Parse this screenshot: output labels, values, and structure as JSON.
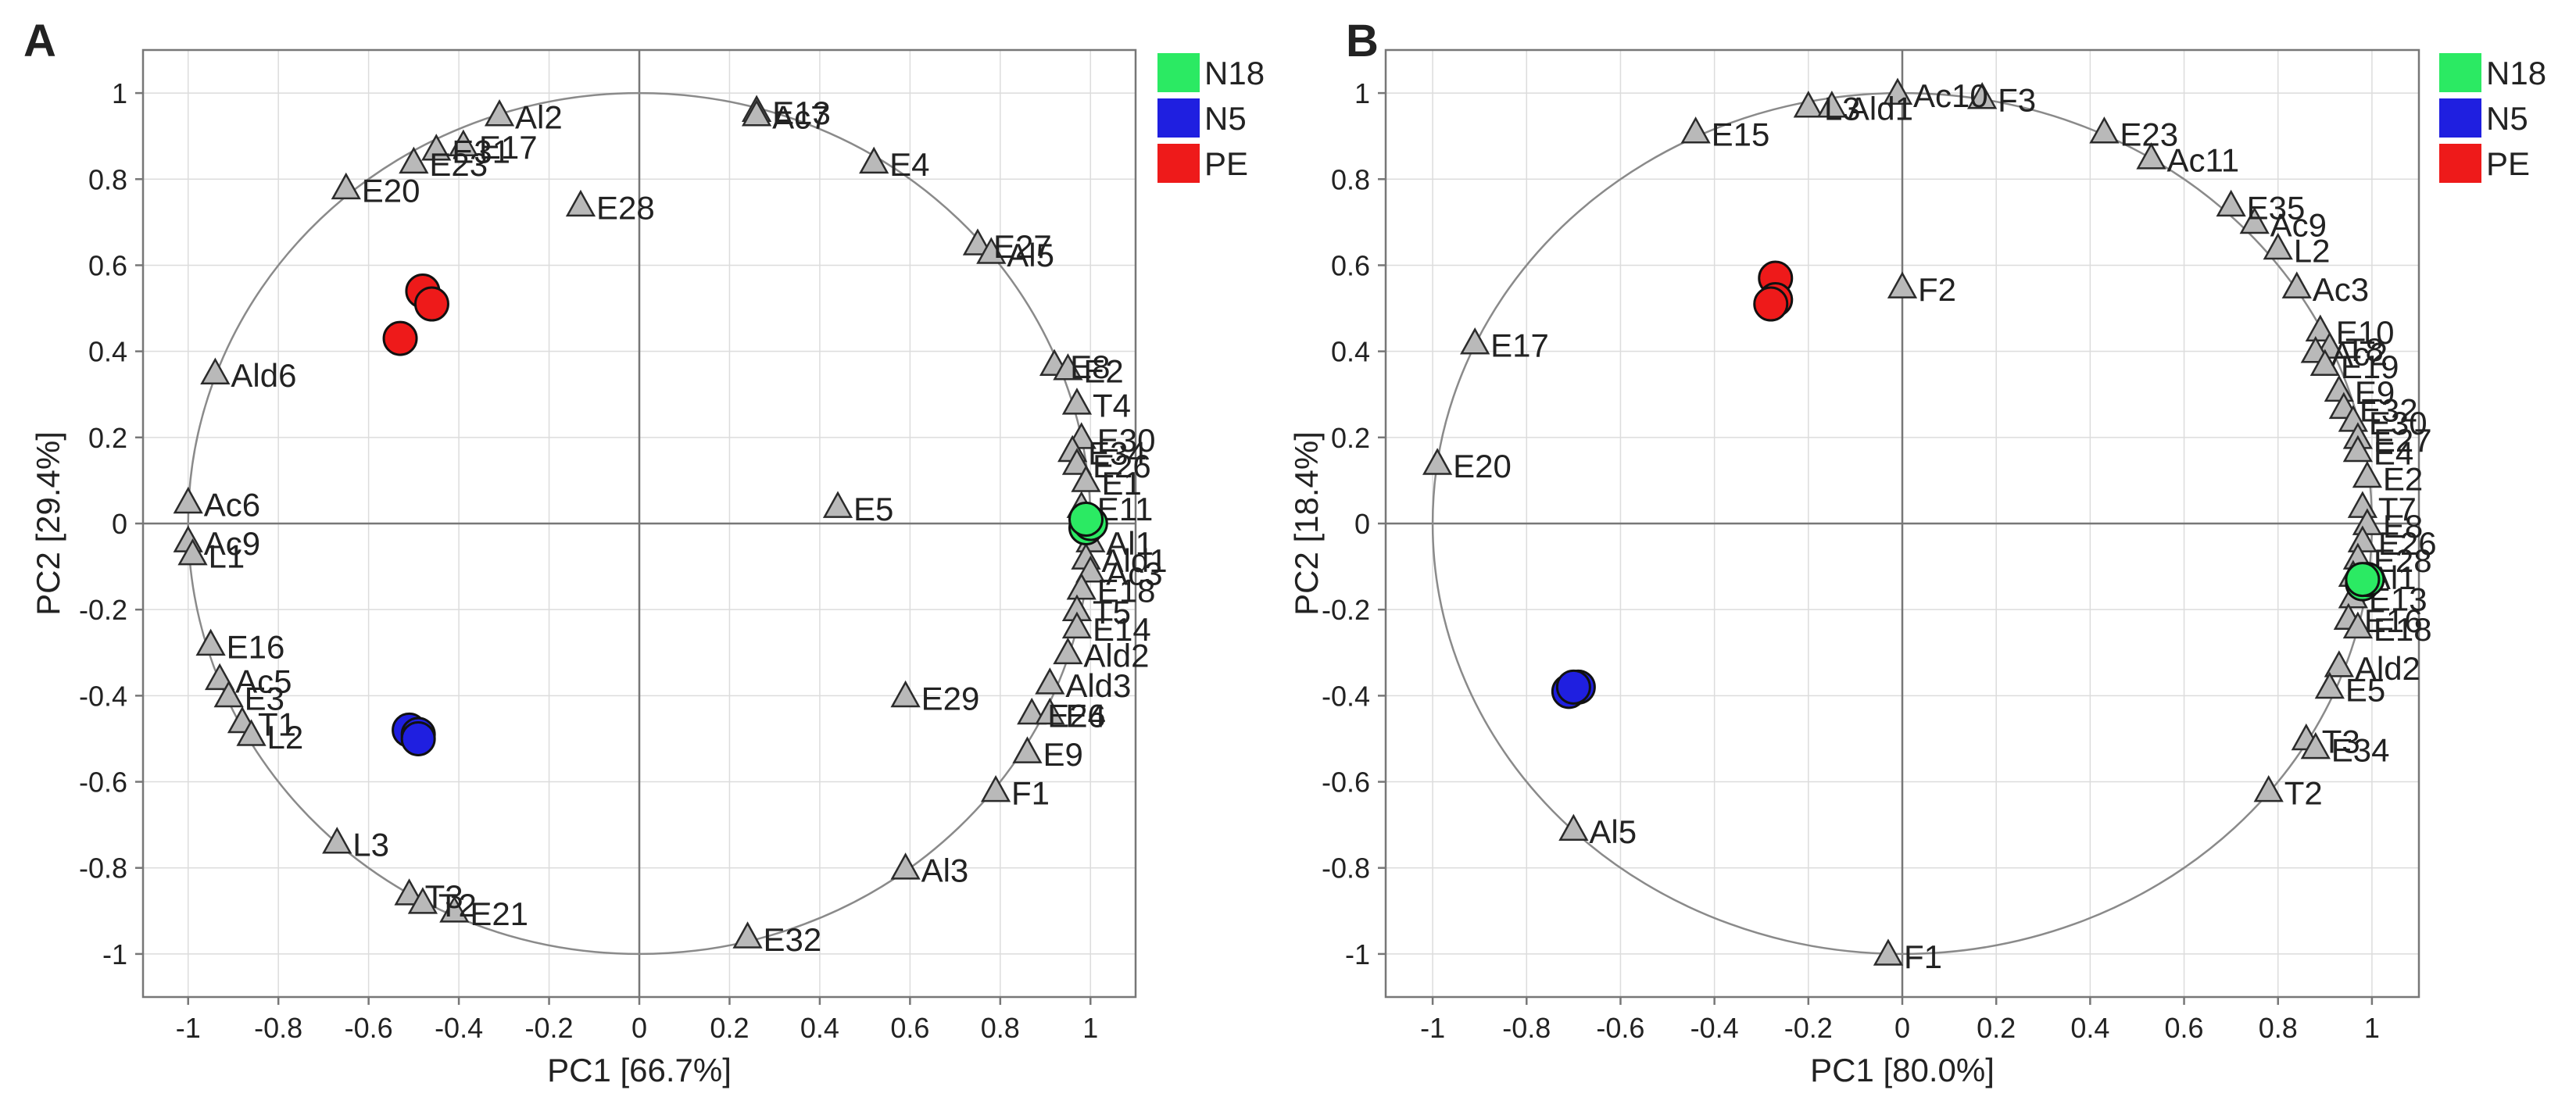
{
  "chart_data": [
    {
      "type": "scatter",
      "panel_letter": "A",
      "xlabel": "PC1 [66.7%]",
      "ylabel": "PC2 [29.4%]",
      "xlim": [
        -1.1,
        1.1
      ],
      "ylim": [
        -1.1,
        1.1
      ],
      "x_ticks": [
        -1,
        -0.8,
        -0.6,
        -0.4,
        -0.2,
        0,
        0.2,
        0.4,
        0.6,
        0.8,
        1
      ],
      "y_ticks": [
        1,
        0.8,
        0.6,
        0.4,
        0.2,
        0,
        -0.2,
        -0.4,
        -0.6,
        -0.8,
        -1
      ],
      "unit_circle": true,
      "legend": [
        {
          "name": "N18",
          "color": "#2bea63"
        },
        {
          "name": "N5",
          "color": "#1f1fe0"
        },
        {
          "name": "PE",
          "color": "#ee1a1a"
        }
      ],
      "groups": [
        {
          "name": "N18",
          "color": "#2bea63",
          "points": [
            [
              0.99,
              -0.01
            ],
            [
              1.0,
              0.0
            ],
            [
              0.99,
              0.01
            ]
          ]
        },
        {
          "name": "N5",
          "color": "#1f1fe0",
          "points": [
            [
              -0.51,
              -0.48
            ],
            [
              -0.49,
              -0.49
            ],
            [
              -0.49,
              -0.5
            ]
          ]
        },
        {
          "name": "PE",
          "color": "#ee1a1a",
          "points": [
            [
              -0.48,
              0.54
            ],
            [
              -0.46,
              0.51
            ],
            [
              -0.53,
              0.43
            ]
          ]
        }
      ],
      "variables": [
        {
          "label": "Al2",
          "x": -0.31,
          "y": 0.95
        },
        {
          "label": "E17",
          "x": -0.39,
          "y": 0.88
        },
        {
          "label": "E31",
          "x": -0.45,
          "y": 0.87
        },
        {
          "label": "E23",
          "x": -0.5,
          "y": 0.84
        },
        {
          "label": "E20",
          "x": -0.65,
          "y": 0.78
        },
        {
          "label": "E28",
          "x": -0.13,
          "y": 0.74
        },
        {
          "label": "E13",
          "x": 0.26,
          "y": 0.96
        },
        {
          "label": "Ac7",
          "x": 0.26,
          "y": 0.95
        },
        {
          "label": "E4",
          "x": 0.52,
          "y": 0.84
        },
        {
          "label": "E27",
          "x": 0.75,
          "y": 0.65
        },
        {
          "label": "Al5",
          "x": 0.78,
          "y": 0.63
        },
        {
          "label": "E8",
          "x": 0.92,
          "y": 0.37
        },
        {
          "label": "E2",
          "x": 0.95,
          "y": 0.36
        },
        {
          "label": "T4",
          "x": 0.97,
          "y": 0.28
        },
        {
          "label": "E30",
          "x": 0.98,
          "y": 0.2
        },
        {
          "label": "E34",
          "x": 0.96,
          "y": 0.17
        },
        {
          "label": "E26",
          "x": 0.97,
          "y": 0.14
        },
        {
          "label": "E1",
          "x": 0.99,
          "y": 0.1
        },
        {
          "label": "E11",
          "x": 0.98,
          "y": 0.04
        },
        {
          "label": "Al1",
          "x": 1.0,
          "y": -0.04
        },
        {
          "label": "Ald1",
          "x": 0.99,
          "y": -0.08
        },
        {
          "label": "Ac3",
          "x": 1.0,
          "y": -0.11
        },
        {
          "label": "E18",
          "x": 0.98,
          "y": -0.15
        },
        {
          "label": "T5",
          "x": 0.97,
          "y": -0.2
        },
        {
          "label": "E14",
          "x": 0.97,
          "y": -0.24
        },
        {
          "label": "Ald2",
          "x": 0.95,
          "y": -0.3
        },
        {
          "label": "Ald3",
          "x": 0.91,
          "y": -0.37
        },
        {
          "label": "E24",
          "x": 0.87,
          "y": -0.44
        },
        {
          "label": "E6",
          "x": 0.91,
          "y": -0.44
        },
        {
          "label": "E9",
          "x": 0.86,
          "y": -0.53
        },
        {
          "label": "F1",
          "x": 0.79,
          "y": -0.62
        },
        {
          "label": "E29",
          "x": 0.59,
          "y": -0.4
        },
        {
          "label": "Al3",
          "x": 0.59,
          "y": -0.8
        },
        {
          "label": "E32",
          "x": 0.24,
          "y": -0.96
        },
        {
          "label": "E5",
          "x": 0.44,
          "y": 0.04
        },
        {
          "label": "Ald6",
          "x": -0.94,
          "y": 0.35
        },
        {
          "label": "Ac6",
          "x": -1.0,
          "y": 0.05
        },
        {
          "label": "Ac9",
          "x": -1.0,
          "y": -0.04
        },
        {
          "label": "L1",
          "x": -0.99,
          "y": -0.07
        },
        {
          "label": "E16",
          "x": -0.95,
          "y": -0.28
        },
        {
          "label": "Ac5",
          "x": -0.93,
          "y": -0.36
        },
        {
          "label": "E3",
          "x": -0.91,
          "y": -0.4
        },
        {
          "label": "T1",
          "x": -0.88,
          "y": -0.46
        },
        {
          "label": "L2",
          "x": -0.86,
          "y": -0.49
        },
        {
          "label": "L3",
          "x": -0.67,
          "y": -0.74
        },
        {
          "label": "T3",
          "x": -0.51,
          "y": -0.86
        },
        {
          "label": "T2",
          "x": -0.48,
          "y": -0.88
        },
        {
          "label": "E21",
          "x": -0.41,
          "y": -0.9
        }
      ]
    },
    {
      "type": "scatter",
      "panel_letter": "B",
      "xlabel": "PC1 [80.0%]",
      "ylabel": "PC2 [18.4%]",
      "xlim": [
        -1.1,
        1.1
      ],
      "ylim": [
        -1.1,
        1.1
      ],
      "x_ticks": [
        -1,
        -0.8,
        -0.6,
        -0.4,
        -0.2,
        0,
        0.2,
        0.4,
        0.6,
        0.8,
        1
      ],
      "y_ticks": [
        1,
        0.8,
        0.6,
        0.4,
        0.2,
        0,
        -0.2,
        -0.4,
        -0.6,
        -0.8,
        -1
      ],
      "unit_circle": true,
      "legend": [
        {
          "name": "N18",
          "color": "#2bea63"
        },
        {
          "name": "N5",
          "color": "#1f1fe0"
        },
        {
          "name": "PE",
          "color": "#ee1a1a"
        }
      ],
      "groups": [
        {
          "name": "N18",
          "color": "#2bea63",
          "points": [
            [
              0.98,
              -0.14
            ],
            [
              0.99,
              -0.13
            ],
            [
              0.98,
              -0.13
            ]
          ]
        },
        {
          "name": "N5",
          "color": "#1f1fe0",
          "points": [
            [
              -0.71,
              -0.39
            ],
            [
              -0.69,
              -0.38
            ],
            [
              -0.7,
              -0.38
            ]
          ]
        },
        {
          "name": "PE",
          "color": "#ee1a1a",
          "points": [
            [
              -0.27,
              0.57
            ],
            [
              -0.27,
              0.52
            ],
            [
              -0.28,
              0.51
            ]
          ]
        }
      ],
      "variables": [
        {
          "label": "Ac10",
          "x": -0.01,
          "y": 1.0
        },
        {
          "label": "L3",
          "x": -0.2,
          "y": 0.97
        },
        {
          "label": "Ald1",
          "x": -0.15,
          "y": 0.97
        },
        {
          "label": "F3",
          "x": 0.17,
          "y": 0.99
        },
        {
          "label": "E15",
          "x": -0.44,
          "y": 0.91
        },
        {
          "label": "E23",
          "x": 0.43,
          "y": 0.91
        },
        {
          "label": "Ac11",
          "x": 0.53,
          "y": 0.85
        },
        {
          "label": "E35",
          "x": 0.7,
          "y": 0.74
        },
        {
          "label": "Ac9",
          "x": 0.75,
          "y": 0.7
        },
        {
          "label": "L2",
          "x": 0.8,
          "y": 0.64
        },
        {
          "label": "Ac3",
          "x": 0.84,
          "y": 0.55
        },
        {
          "label": "E10",
          "x": 0.89,
          "y": 0.45
        },
        {
          "label": "T8",
          "x": 0.91,
          "y": 0.41
        },
        {
          "label": "Ac2",
          "x": 0.88,
          "y": 0.4
        },
        {
          "label": "E19",
          "x": 0.9,
          "y": 0.37
        },
        {
          "label": "E9",
          "x": 0.93,
          "y": 0.31
        },
        {
          "label": "E32",
          "x": 0.94,
          "y": 0.27
        },
        {
          "label": "E30",
          "x": 0.96,
          "y": 0.24
        },
        {
          "label": "E27",
          "x": 0.97,
          "y": 0.2
        },
        {
          "label": "E4",
          "x": 0.97,
          "y": 0.17
        },
        {
          "label": "E2",
          "x": 0.99,
          "y": 0.11
        },
        {
          "label": "T7",
          "x": 0.98,
          "y": 0.04
        },
        {
          "label": "E8",
          "x": 0.99,
          "y": 0.0
        },
        {
          "label": "E26",
          "x": 0.98,
          "y": -0.04
        },
        {
          "label": "E28",
          "x": 0.97,
          "y": -0.08
        },
        {
          "label": "Al1",
          "x": 0.96,
          "y": -0.12
        },
        {
          "label": "E13",
          "x": 0.96,
          "y": -0.17
        },
        {
          "label": "E16",
          "x": 0.95,
          "y": -0.22
        },
        {
          "label": "E18",
          "x": 0.97,
          "y": -0.24
        },
        {
          "label": "Ald2",
          "x": 0.93,
          "y": -0.33
        },
        {
          "label": "E5",
          "x": 0.91,
          "y": -0.38
        },
        {
          "label": "T3",
          "x": 0.86,
          "y": -0.5
        },
        {
          "label": "E34",
          "x": 0.88,
          "y": -0.52
        },
        {
          "label": "T2",
          "x": 0.78,
          "y": -0.62
        },
        {
          "label": "F2",
          "x": 0.0,
          "y": 0.55
        },
        {
          "label": "E17",
          "x": -0.91,
          "y": 0.42
        },
        {
          "label": "E20",
          "x": -0.99,
          "y": 0.14
        },
        {
          "label": "Al5",
          "x": -0.7,
          "y": -0.71
        },
        {
          "label": "F1",
          "x": -0.03,
          "y": -1.0
        }
      ]
    }
  ]
}
